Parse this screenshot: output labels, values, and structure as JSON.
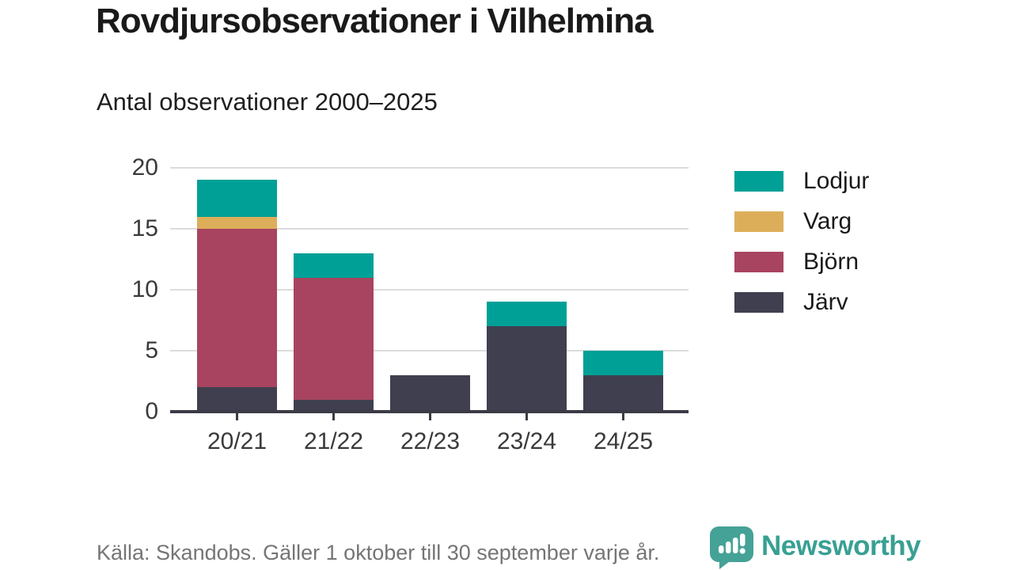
{
  "header": {
    "title": "Rovdjursobservationer i Vilhelmina",
    "subtitle": "Antal observationer 2000–2025"
  },
  "chart_data": {
    "type": "bar",
    "stacked": true,
    "title": "Rovdjursobservationer i Vilhelmina",
    "subtitle": "Antal observationer 2000–2025",
    "categories": [
      "20/21",
      "21/22",
      "22/23",
      "23/24",
      "24/25"
    ],
    "series": [
      {
        "name": "Järv",
        "color": "#3f3f4f",
        "values": [
          2,
          1,
          3,
          7,
          3
        ]
      },
      {
        "name": "Björn",
        "color": "#a8445f",
        "values": [
          13,
          10,
          0,
          0,
          0
        ]
      },
      {
        "name": "Varg",
        "color": "#ddae5a",
        "values": [
          1,
          0,
          0,
          0,
          0
        ]
      },
      {
        "name": "Lodjur",
        "color": "#00a096",
        "values": [
          3,
          2,
          0,
          2,
          2
        ]
      }
    ],
    "totals": [
      19,
      13,
      3,
      9,
      5
    ],
    "stack_order_bottom_to_top": [
      "Järv",
      "Björn",
      "Varg",
      "Lodjur"
    ],
    "legend": [
      "Lodjur",
      "Varg",
      "Björn",
      "Järv"
    ],
    "legend_position": "right",
    "xlabel": "",
    "ylabel": "",
    "yticks": [
      0,
      5,
      10,
      15,
      20
    ],
    "ylim": [
      0,
      20
    ],
    "grid": true,
    "grid_color": "#dcdcdc",
    "axis_color": "#3b3b46",
    "tick_label_color": "#3a3a3a"
  },
  "footer": {
    "source": "Källa: Skandobs. Gäller 1 oktober till 30 september varje år.",
    "brand": "Newsworthy",
    "brand_color": "#38a093",
    "logo_color": "#45a296"
  }
}
